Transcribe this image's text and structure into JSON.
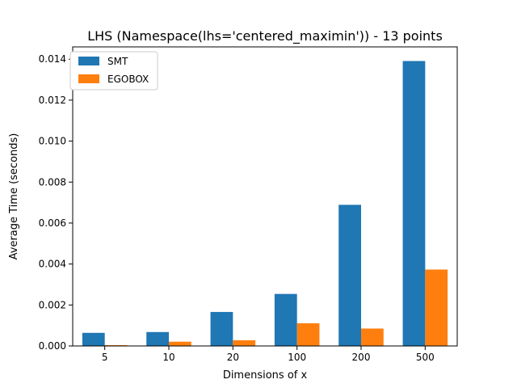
{
  "chart_data": {
    "type": "bar",
    "title": "LHS (Namespace(lhs='centered_maximin')) - 13 points",
    "xlabel": "Dimensions of x",
    "ylabel": "Average Time (seconds)",
    "categories": [
      "5",
      "10",
      "20",
      "100",
      "200",
      "500"
    ],
    "series": [
      {
        "name": "SMT",
        "color": "#1f77b4",
        "values": [
          0.00064,
          0.00068,
          0.00166,
          0.00254,
          0.00689,
          0.01391
        ]
      },
      {
        "name": "EGOBOX",
        "color": "#ff7f0e",
        "values": [
          4e-05,
          0.00021,
          0.00028,
          0.00111,
          0.00085,
          0.00373
        ]
      }
    ],
    "ylim": [
      0,
      0.0146
    ],
    "yticks": [
      "0.000",
      "0.002",
      "0.004",
      "0.006",
      "0.008",
      "0.010",
      "0.012",
      "0.014"
    ],
    "legend_position": "upper-left",
    "grid": false
  }
}
